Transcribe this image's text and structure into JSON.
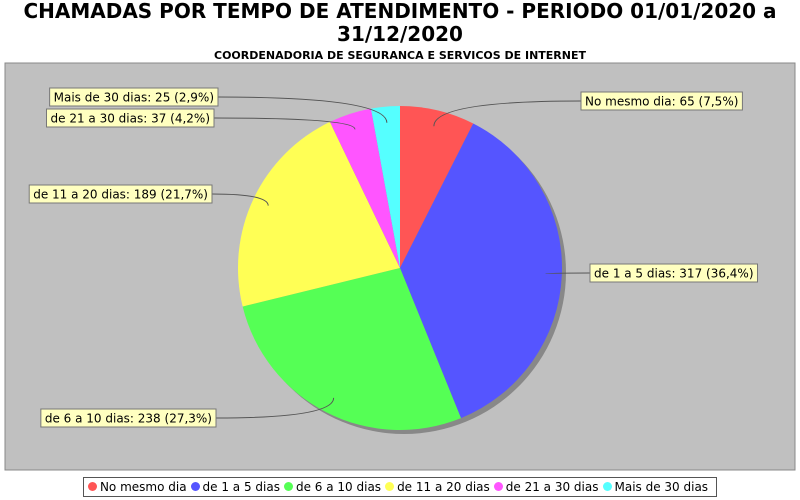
{
  "chart_data": {
    "type": "pie",
    "title": "CHAMADAS POR TEMPO DE ATENDIMENTO - PERIODO 01/01/2020 a 31/12/2020",
    "subtitle": "COORDENADORIA DE SEGURANCA E SERVICOS DE INTERNET",
    "categories": [
      "No mesmo dia",
      "de 1 a 5 dias",
      "de 6 a 10 dias",
      "de 11 a 20 dias",
      "de 21 a 30 dias",
      "Mais de 30 dias"
    ],
    "values": [
      65,
      317,
      238,
      189,
      37,
      25
    ],
    "value_labels": [
      "No mesmo dia: 65 (7,5%)",
      "de 1 a 5 dias: 317 (36,4%)",
      "de 6 a 10 dias: 238 (27,3%)",
      "de 11 a 20 dias: 189 (21,7%)",
      "de 21 a 30 dias: 37 (4,2%)",
      "Mais de 30 dias: 25 (2,9%)"
    ],
    "colors": [
      "#ff5555",
      "#5555ff",
      "#55ff55",
      "#ffff55",
      "#ff55ff",
      "#55ffff"
    ]
  }
}
